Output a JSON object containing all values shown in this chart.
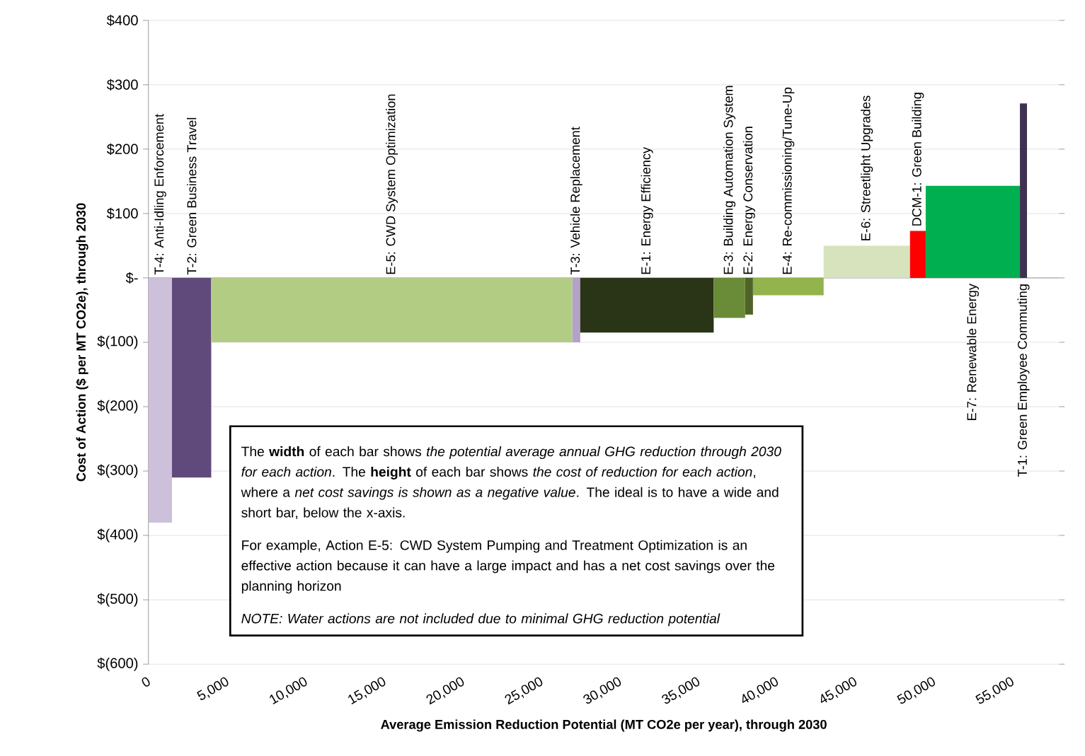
{
  "chart_data": {
    "type": "area",
    "xlabel": "Average Emission Reduction Potential (MT CO2e per year), through 2030",
    "ylabel": "Cost of Action ($ per MT CO2e), through 2030",
    "xlim": [
      0,
      58000
    ],
    "xticks": [
      0,
      {
        "value": 5000,
        "label": "5,000"
      },
      {
        "value": 10000,
        "label": "10,000"
      },
      {
        "value": 15000,
        "label": "15,000"
      },
      {
        "value": 20000,
        "label": "20,000"
      },
      {
        "value": 25000,
        "label": "25,000"
      },
      {
        "value": 30000,
        "label": "30,000"
      },
      {
        "value": 35000,
        "label": "35,000"
      },
      {
        "value": 40000,
        "label": "40,000"
      },
      {
        "value": 45000,
        "label": "45,000"
      },
      {
        "value": 50000,
        "label": "50,000"
      },
      {
        "value": 55000,
        "label": "55,000"
      }
    ],
    "ylim": [
      -600,
      400
    ],
    "yticks": [
      {
        "value": -600,
        "label": "$(600)"
      },
      {
        "value": -500,
        "label": "$(500)"
      },
      {
        "value": -400,
        "label": "$(400)"
      },
      {
        "value": -300,
        "label": "$(300)"
      },
      {
        "value": -200,
        "label": "$(200)"
      },
      {
        "value": -100,
        "label": "$(100)"
      },
      {
        "value": 0,
        "label": "$-"
      },
      {
        "value": 100,
        "label": "$100"
      },
      {
        "value": 200,
        "label": "$200"
      },
      {
        "value": 300,
        "label": "$300"
      },
      {
        "value": 400,
        "label": "$400"
      }
    ],
    "grid": "y",
    "series": [
      {
        "name": "T-4: Anti-Idling Enforcement",
        "color": "#ccc0da",
        "x": [
          0,
          1500
        ],
        "values": [
          -380,
          -380
        ]
      },
      {
        "name": "T-2: Green Business Travel",
        "color": "#604a7b",
        "x": [
          1500,
          4000
        ],
        "values": [
          -310,
          -310
        ]
      },
      {
        "name": "E-5: CWD System Optimization",
        "color": "#b3cc84",
        "x": [
          4000,
          27000
        ],
        "values": [
          -100,
          -100
        ]
      },
      {
        "name": "T-3: Vehicle Replacement",
        "color": "#b3a2c7",
        "x": [
          27000,
          27500
        ],
        "values": [
          -100,
          -100
        ]
      },
      {
        "name": "E-1: Energy Efficiency",
        "color": "#2a3417",
        "x": [
          27500,
          36000
        ],
        "values": [
          -85,
          -85
        ]
      },
      {
        "name": "E-3: Building Automation System",
        "color": "#6a8b37",
        "x": [
          36000,
          38000
        ],
        "values": [
          -62,
          -62
        ]
      },
      {
        "name": "E-2: Energy Conservation",
        "color": "#4f6228",
        "x": [
          38000,
          38500
        ],
        "values": [
          -57,
          -57
        ]
      },
      {
        "name": "E-4: Re-commissioning/Tune-Up",
        "color": "#93b34c",
        "x": [
          38500,
          43000
        ],
        "values": [
          -27,
          -27
        ]
      },
      {
        "name": "E-6: Streetlight Upgrades",
        "color": "#d6e3bc",
        "x": [
          43000,
          48500
        ],
        "values": [
          50,
          50
        ]
      },
      {
        "name": "DCM-1: Green Building",
        "color": "#ff0000",
        "x": [
          48500,
          49500
        ],
        "values": [
          73,
          73
        ]
      },
      {
        "name": "E-7: Renewable Energy",
        "color": "#00b050",
        "x": [
          49500,
          55500
        ],
        "values": [
          143,
          143
        ]
      },
      {
        "name": "T-1: Green Employee Commuting",
        "color": "#3f3151",
        "x": [
          55500,
          55950
        ],
        "values": [
          271,
          271
        ]
      }
    ],
    "annotations": [
      "The **width** of each bar shows *the potential average annual GHG reduction through 2030 for each action*.  The **height** of each bar shows *the cost of reduction for each action*, where a *net cost savings is shown as a negative value*. The ideal is to have a wide and short bar, below the x-axis.",
      "For example, Action E-5: CWD System Pumping and Treatment Optimization is an effective action because it can have a large impact and has a net cost savings over the planning horizon",
      "NOTE: Water actions are not included due to minimal GHG reduction potential"
    ]
  }
}
